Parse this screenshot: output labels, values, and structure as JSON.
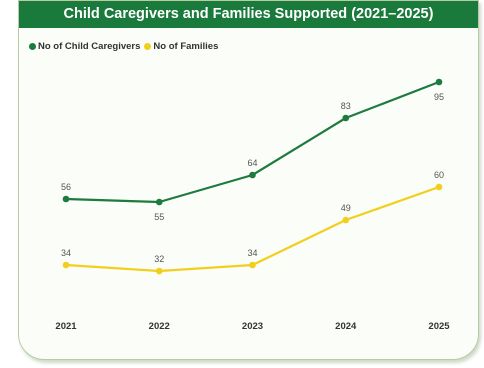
{
  "title": "Child Caregivers and Families Supported (2021–2025)",
  "colors": {
    "title_bar": "#1a7a3c",
    "caregivers": "#1e7a3e",
    "families": "#f2cf1d",
    "card_border": "#b7cca4"
  },
  "legend": [
    {
      "label": "No of Child Caregivers",
      "color": "#1e7a3e"
    },
    {
      "label": "No of Families",
      "color": "#f2cf1d"
    }
  ],
  "chart_data": {
    "type": "line",
    "title": "Child Caregivers and Families Supported (2021–2025)",
    "x": [
      "2021",
      "2022",
      "2023",
      "2024",
      "2025"
    ],
    "series": [
      {
        "name": "No of Child Caregivers",
        "values": [
          56,
          55,
          64,
          83,
          95
        ],
        "color": "#1e7a3e"
      },
      {
        "name": "No of Families",
        "values": [
          34,
          32,
          34,
          49,
          60
        ],
        "color": "#f2cf1d"
      }
    ],
    "xlabel": "",
    "ylabel": "",
    "ylim": [
      20,
      100
    ],
    "grid": false,
    "legend_position": "top-left",
    "data_labels": true
  }
}
